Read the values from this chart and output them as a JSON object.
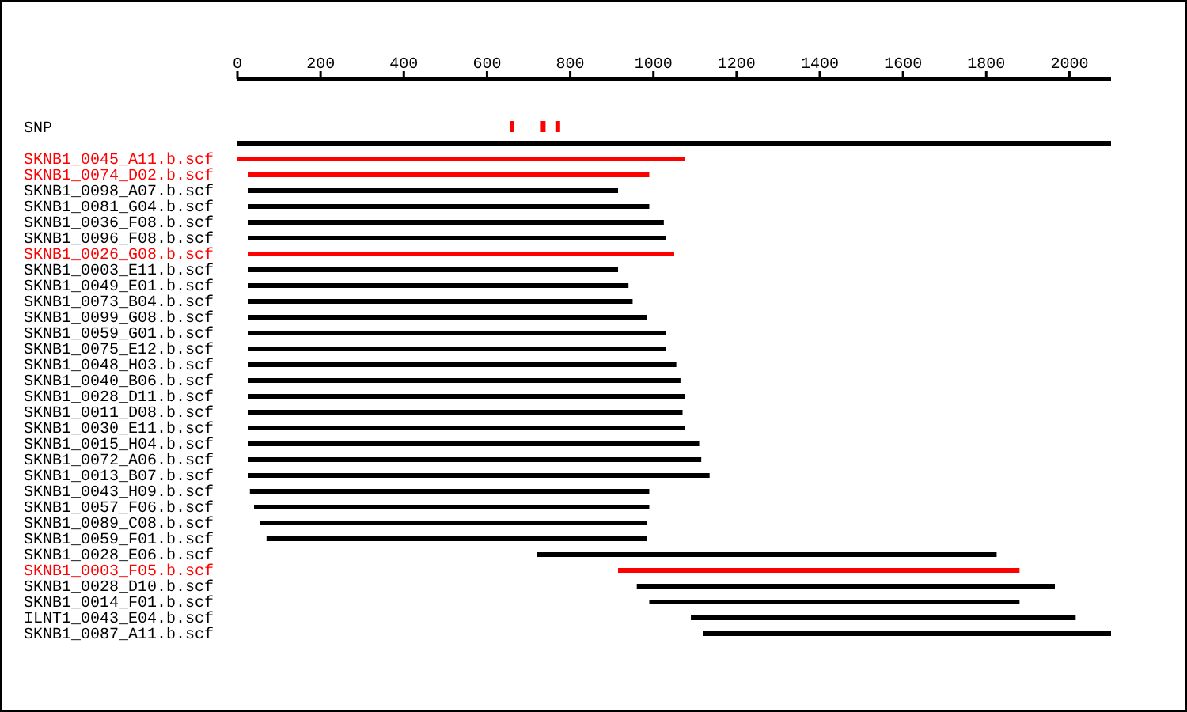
{
  "chart_data": {
    "type": "bar",
    "orientation": "horizontal",
    "categories": [
      "SNP",
      null,
      "SKNB1_0045_A11.b.scf",
      "SKNB1_0074_D02.b.scf",
      "SKNB1_0098_A07.b.scf",
      "SKNB1_0081_G04.b.scf",
      "SKNB1_0036_F08.b.scf",
      "SKNB1_0096_F08.b.scf",
      "SKNB1_0026_G08.b.scf",
      "SKNB1_0003_E11.b.scf",
      "SKNB1_0049_E01.b.scf",
      "SKNB1_0073_B04.b.scf",
      "SKNB1_0099_G08.b.scf",
      "SKNB1_0059_G01.b.scf",
      "SKNB1_0075_E12.b.scf",
      "SKNB1_0048_H03.b.scf",
      "SKNB1_0040_B06.b.scf",
      "SKNB1_0028_D11.b.scf",
      "SKNB1_0011_D08.b.scf",
      "SKNB1_0030_E11.b.scf",
      "SKNB1_0015_H04.b.scf",
      "SKNB1_0072_A06.b.scf",
      "SKNB1_0013_B07.b.scf",
      "SKNB1_0043_H09.b.scf",
      "SKNB1_0057_F06.b.scf",
      "SKNB1_0089_C08.b.scf",
      "SKNB1_0059_F01.b.scf",
      "SKNB1_0028_E06.b.scf",
      "SKNB1_0003_F05.b.scf",
      "SKNB1_0028_D10.b.scf",
      "SKNB1_0014_F01.b.scf",
      "ILNT1_0043_E04.b.scf",
      "SKNB1_0087_A11.b.scf"
    ],
    "series": [
      {
        "values": [
          null,
          2100,
          1075,
          965,
          890,
          965,
          1000,
          1005,
          1025,
          890,
          915,
          925,
          960,
          1005,
          1005,
          1030,
          1040,
          1050,
          1045,
          1050,
          1085,
          1090,
          1110,
          960,
          950,
          930,
          915,
          1105,
          965,
          1005,
          890,
          925,
          980
        ],
        "base": [
          null,
          0,
          0,
          25,
          25,
          25,
          25,
          25,
          25,
          25,
          25,
          25,
          25,
          25,
          25,
          25,
          25,
          25,
          25,
          25,
          25,
          25,
          25,
          30,
          40,
          55,
          70,
          720,
          915,
          960,
          990,
          1090,
          1120
        ],
        "colors": [
          null,
          "#000000",
          "#ff0000",
          "#ff0000",
          "#000000",
          "#000000",
          "#000000",
          "#000000",
          "#ff0000",
          "#000000",
          "#000000",
          "#000000",
          "#000000",
          "#000000",
          "#000000",
          "#000000",
          "#000000",
          "#000000",
          "#000000",
          "#000000",
          "#000000",
          "#000000",
          "#000000",
          "#000000",
          "#000000",
          "#000000",
          "#000000",
          "#000000",
          "#ff0000",
          "#000000",
          "#000000",
          "#000000",
          "#000000"
        ]
      },
      {
        "type": "scatter",
        "x": [
          "SNP",
          "SNP",
          "SNP"
        ],
        "values": [
          660,
          735,
          770
        ],
        "color": "#ff0000",
        "marker": "square"
      }
    ],
    "xlim": [
      0,
      2100
    ],
    "xticks": [
      0,
      200,
      400,
      600,
      800,
      1000,
      1200,
      1400,
      1600,
      1800,
      2000
    ]
  }
}
